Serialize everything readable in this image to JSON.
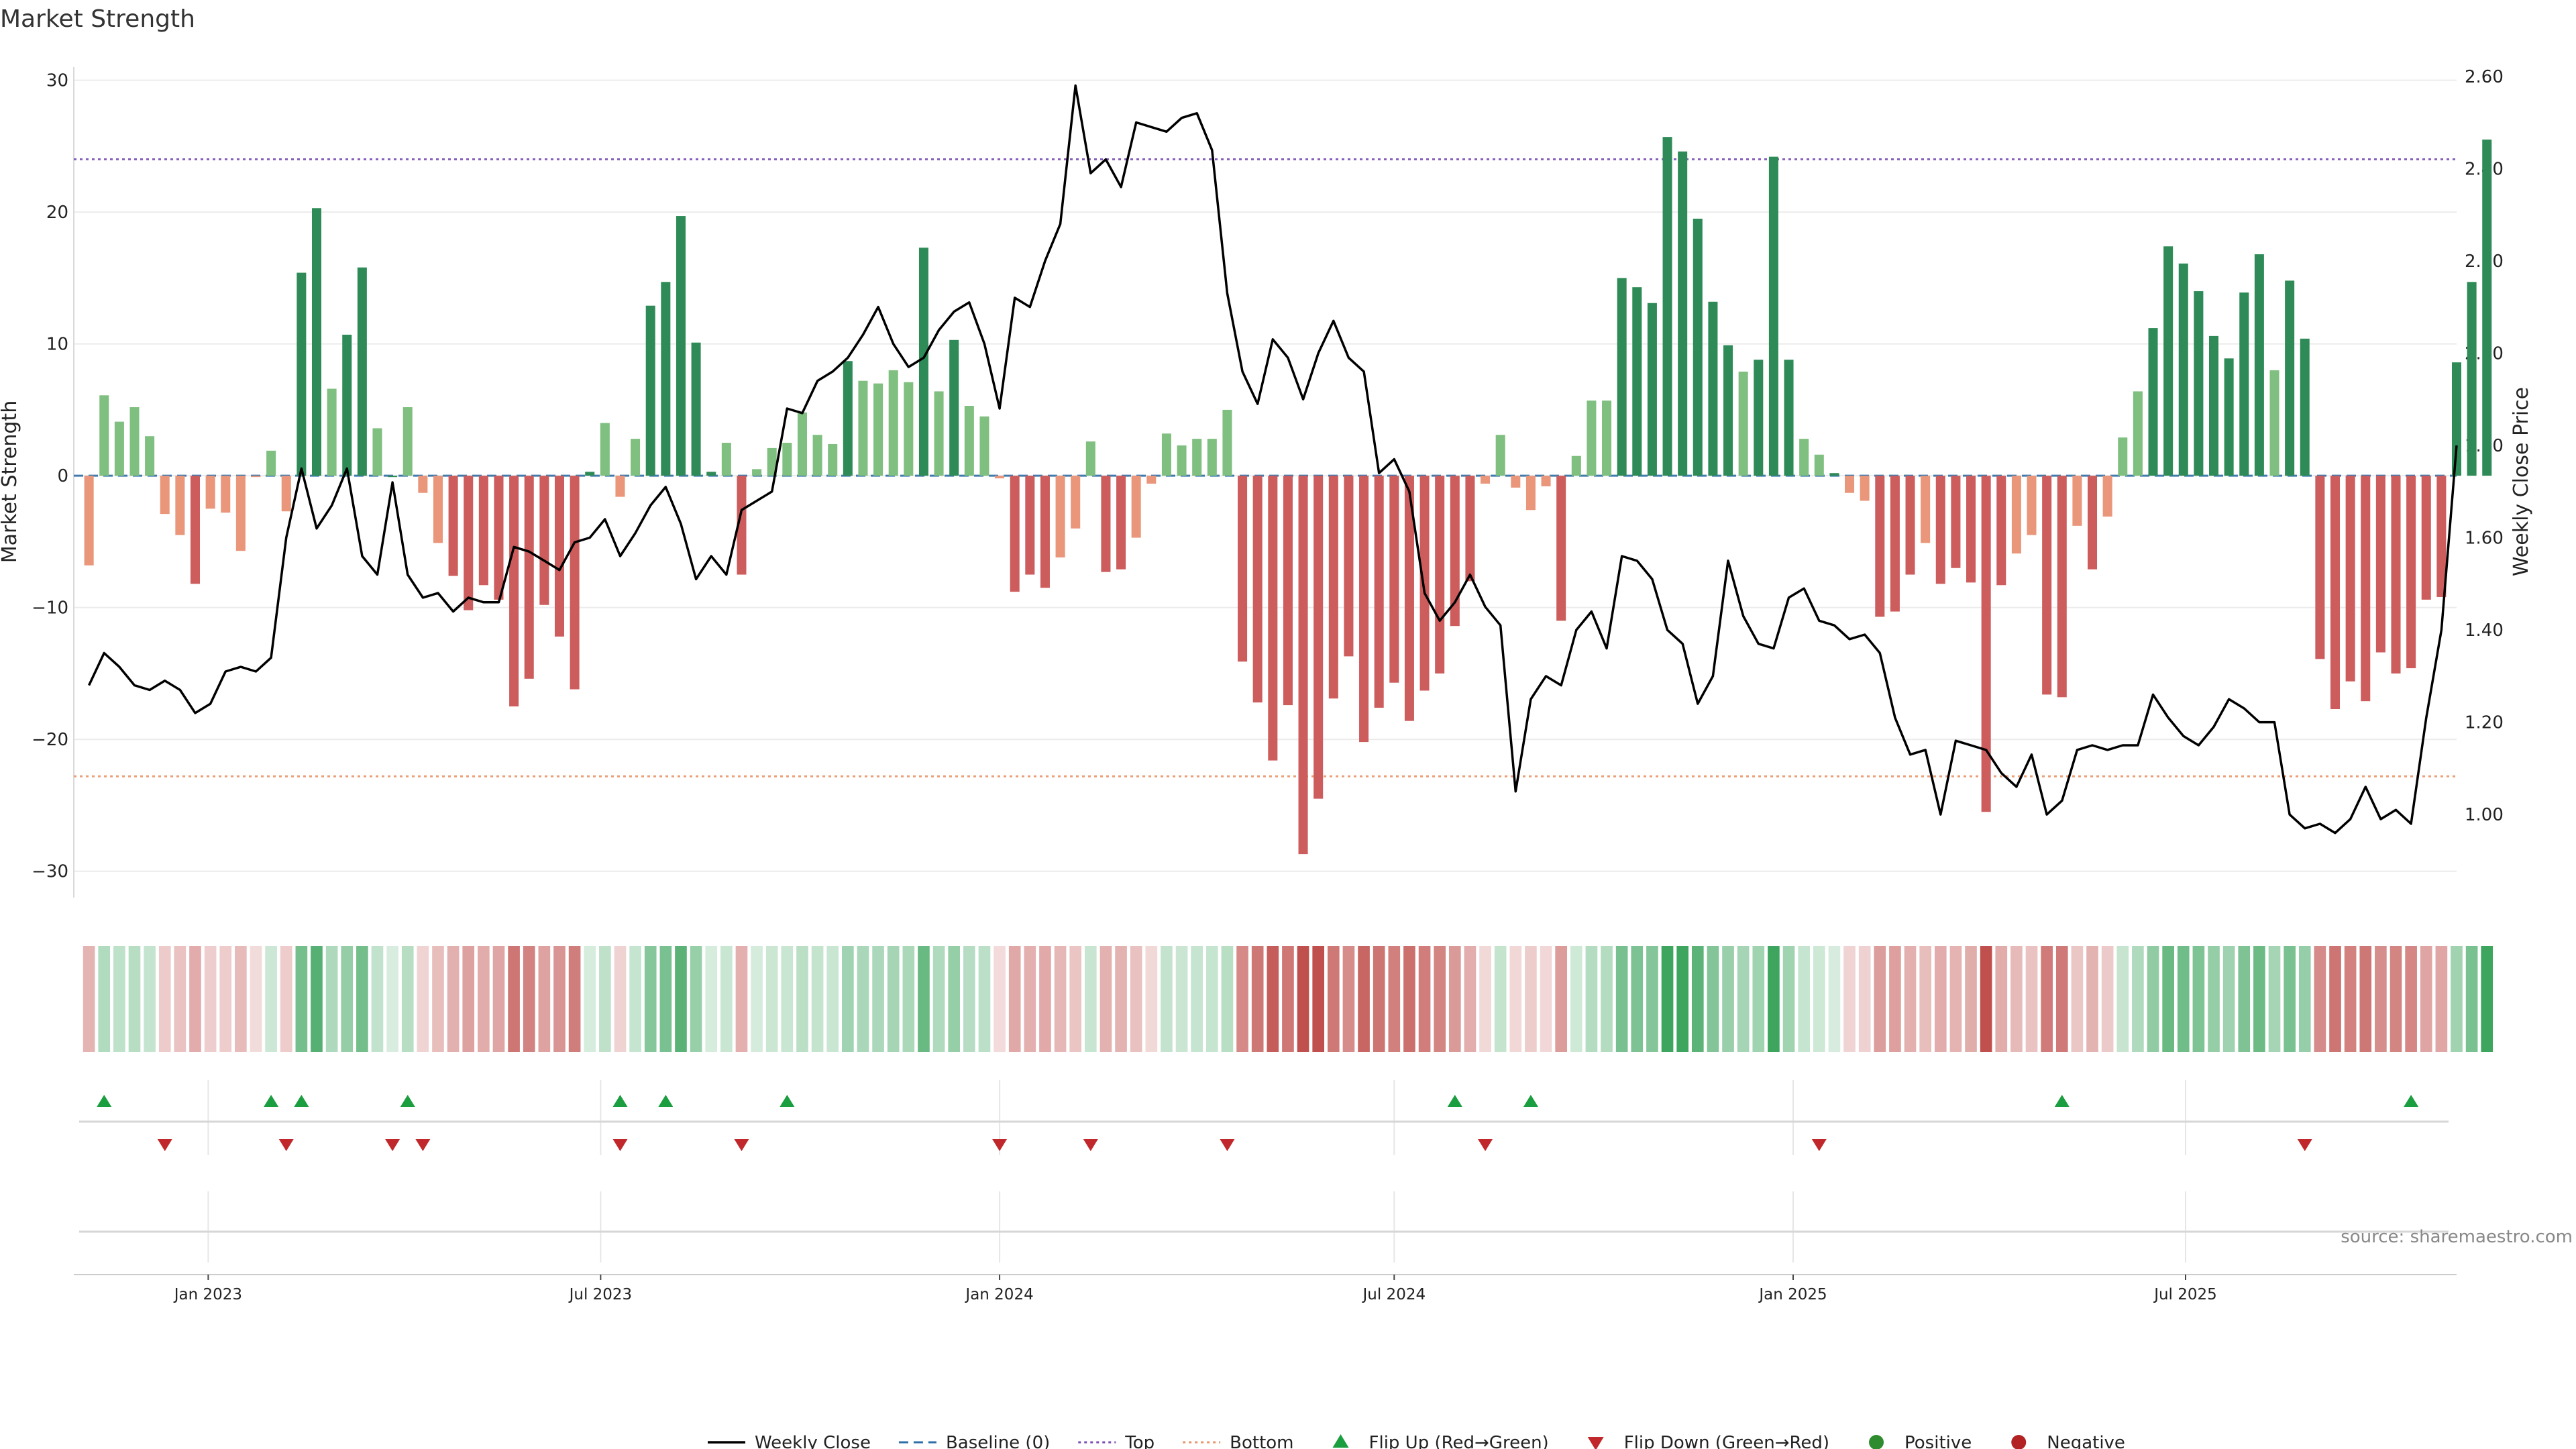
{
  "chart_data": {
    "type": "bar",
    "title": "Market Strength",
    "ylabel_left": "Market Strength",
    "ylabel_right": "Weekly Close Price",
    "ylim_left": [
      -32,
      31
    ],
    "ylim_right": [
      0.82,
      2.62
    ],
    "yticks_left": [
      30,
      20,
      10,
      0,
      -10,
      -20,
      -30
    ],
    "ytick_labels_left": [
      "30",
      "20",
      "10",
      "0",
      "−10",
      "−20",
      "−30"
    ],
    "yticks_right": [
      2.6,
      2.4,
      2.2,
      2.0,
      1.8,
      1.6,
      1.4,
      1.2,
      1.0
    ],
    "ytick_labels_right": [
      "2.60",
      "2.40",
      "2.20",
      "2.00",
      "1.80",
      "1.60",
      "1.40",
      "1.20",
      "1.00"
    ],
    "x_start": "2022-11-07",
    "x_step_days": 7,
    "x_range": [
      "2022-10-31",
      "2025-11-03"
    ],
    "xticks": [
      {
        "date": "2023-01-01",
        "label": "Jan 2023"
      },
      {
        "date": "2023-07-01",
        "label": "Jul 2023"
      },
      {
        "date": "2024-01-01",
        "label": "Jan 2024"
      },
      {
        "date": "2024-07-01",
        "label": "Jul 2024"
      },
      {
        "date": "2025-01-01",
        "label": "Jan 2025"
      },
      {
        "date": "2025-07-01",
        "label": "Jul 2025"
      }
    ],
    "strength": [
      -6.8,
      6.1,
      4.1,
      5.2,
      3.0,
      -2.9,
      -4.5,
      -8.2,
      -2.5,
      -2.8,
      -5.7,
      -0.1,
      1.9,
      -2.7,
      15.4,
      20.3,
      6.6,
      10.7,
      15.8,
      3.6,
      0.0,
      5.2,
      -1.3,
      -5.1,
      -7.6,
      -10.2,
      -8.3,
      -9.4,
      -17.5,
      -15.4,
      -9.8,
      -12.2,
      -16.2,
      0.3,
      4.0,
      -1.6,
      2.8,
      12.9,
      14.7,
      19.7,
      10.1,
      0.3,
      2.5,
      -7.5,
      0.5,
      2.1,
      2.5,
      4.8,
      3.1,
      2.4,
      8.7,
      7.2,
      7.0,
      8.0,
      7.1,
      17.3,
      6.4,
      10.3,
      5.3,
      4.5,
      -0.2,
      -8.8,
      -7.5,
      -8.5,
      -6.2,
      -4.0,
      2.6,
      -7.3,
      -7.1,
      -4.7,
      -0.6,
      3.2,
      2.3,
      2.8,
      2.8,
      5.0,
      -14.1,
      -17.2,
      -21.6,
      -17.4,
      -28.7,
      -24.5,
      -16.9,
      -13.7,
      -20.2,
      -17.6,
      -15.7,
      -18.6,
      -16.3,
      -15.0,
      -11.4,
      -8.0,
      -0.6,
      3.1,
      -0.9,
      -2.6,
      -0.8,
      -11.0,
      1.5,
      5.7,
      5.7,
      15.0,
      14.3,
      13.1,
      25.7,
      24.6,
      19.5,
      13.2,
      9.9,
      7.9,
      8.8,
      24.2,
      8.8,
      2.8,
      1.6,
      0.2,
      -1.3,
      -1.9,
      -10.7,
      -10.3,
      -7.5,
      -5.1,
      -8.2,
      -7.0,
      -8.1,
      -25.5,
      -8.3,
      -5.9,
      -4.5,
      -16.6,
      -16.8,
      -3.8,
      -7.1,
      -3.1,
      2.9,
      6.4,
      11.2,
      17.4,
      16.1,
      14.0,
      10.6,
      8.9,
      13.9,
      16.8,
      8.0,
      14.8,
      10.4,
      -13.9,
      -17.7,
      -15.6,
      -17.1,
      -13.4,
      -15.0,
      -14.6,
      -9.4,
      -9.2,
      8.6,
      14.7,
      25.5
    ],
    "weekly_close": [
      1.28,
      1.35,
      1.32,
      1.28,
      1.27,
      1.29,
      1.27,
      1.22,
      1.24,
      1.31,
      1.32,
      1.31,
      1.34,
      1.6,
      1.75,
      1.62,
      1.67,
      1.75,
      1.56,
      1.52,
      1.72,
      1.52,
      1.47,
      1.48,
      1.44,
      1.47,
      1.46,
      1.46,
      1.58,
      1.57,
      1.55,
      1.53,
      1.59,
      1.6,
      1.64,
      1.56,
      1.61,
      1.67,
      1.71,
      1.63,
      1.51,
      1.56,
      1.52,
      1.66,
      1.68,
      1.7,
      1.88,
      1.87,
      1.94,
      1.96,
      1.99,
      2.04,
      2.1,
      2.02,
      1.97,
      1.99,
      2.05,
      2.09,
      2.11,
      2.02,
      1.88,
      2.12,
      2.1,
      2.2,
      2.28,
      2.58,
      2.39,
      2.42,
      2.36,
      2.5,
      2.49,
      2.48,
      2.51,
      2.52,
      2.44,
      2.13,
      1.96,
      1.89,
      2.03,
      1.99,
      1.9,
      2.0,
      2.07,
      1.99,
      1.96,
      1.74,
      1.77,
      1.7,
      1.48,
      1.42,
      1.46,
      1.52,
      1.45,
      1.41,
      1.05,
      1.25,
      1.3,
      1.28,
      1.4,
      1.44,
      1.36,
      1.56,
      1.55,
      1.51,
      1.4,
      1.37,
      1.24,
      1.3,
      1.55,
      1.43,
      1.37,
      1.36,
      1.47,
      1.49,
      1.42,
      1.41,
      1.38,
      1.39,
      1.35,
      1.21,
      1.13,
      1.14,
      1.0,
      1.16,
      1.15,
      1.14,
      1.09,
      1.06,
      1.13,
      1.0,
      1.03,
      1.14,
      1.15,
      1.14,
      1.15,
      1.15,
      1.26,
      1.21,
      1.17,
      1.15,
      1.19,
      1.25,
      1.23,
      1.2,
      1.2,
      1.0,
      0.97,
      0.98,
      0.96,
      0.99,
      1.06,
      0.99,
      1.01,
      0.98,
      1.21,
      1.4,
      1.8
    ],
    "reference_lines": [
      {
        "name": "Baseline (0)",
        "value": 0,
        "color": "#2f6fa7",
        "style": "dashed"
      },
      {
        "name": "Top",
        "value": 24,
        "color": "#7b4fb5",
        "style": "dotted"
      },
      {
        "name": "Bottom",
        "value": -22.8,
        "color": "#e8956a",
        "style": "dotted"
      }
    ],
    "flip_up_indices": [
      1,
      12,
      14,
      21,
      35,
      38,
      46,
      90,
      95,
      130,
      153
    ],
    "flip_down_indices": [
      5,
      13,
      20,
      22,
      35,
      43,
      60,
      66,
      75,
      92,
      114,
      146
    ],
    "annotation": "source: sharemaestro.com",
    "legend_position": "bottom-center",
    "colors": {
      "strong_pos": "#2e8b57",
      "weak_pos": "#7fbf7f",
      "strong_neg": "#cd5c5c",
      "weak_neg": "#e9967a",
      "flip_up": "#1a9e3f",
      "flip_down": "#c0282b",
      "positive_dot": "#2e8b2e",
      "negative_dot": "#b22222",
      "line": "#000000",
      "grid": "#ebebeb"
    }
  },
  "legend": [
    {
      "label": "Weekly Close",
      "type": "line",
      "color": "#000000"
    },
    {
      "label": "Baseline (0)",
      "type": "dashed",
      "color": "#2f6fa7"
    },
    {
      "label": "Top",
      "type": "dotted",
      "color": "#7b4fb5"
    },
    {
      "label": "Bottom",
      "type": "dotted",
      "color": "#e8956a"
    },
    {
      "label": "Flip Up (Red→Green)",
      "type": "tri-up",
      "color": "#1a9e3f"
    },
    {
      "label": "Flip Down (Green→Red)",
      "type": "tri-down",
      "color": "#c0282b"
    },
    {
      "label": "Positive",
      "type": "dot",
      "color": "#2e8b2e"
    },
    {
      "label": "Negative",
      "type": "dot",
      "color": "#b22222"
    }
  ]
}
